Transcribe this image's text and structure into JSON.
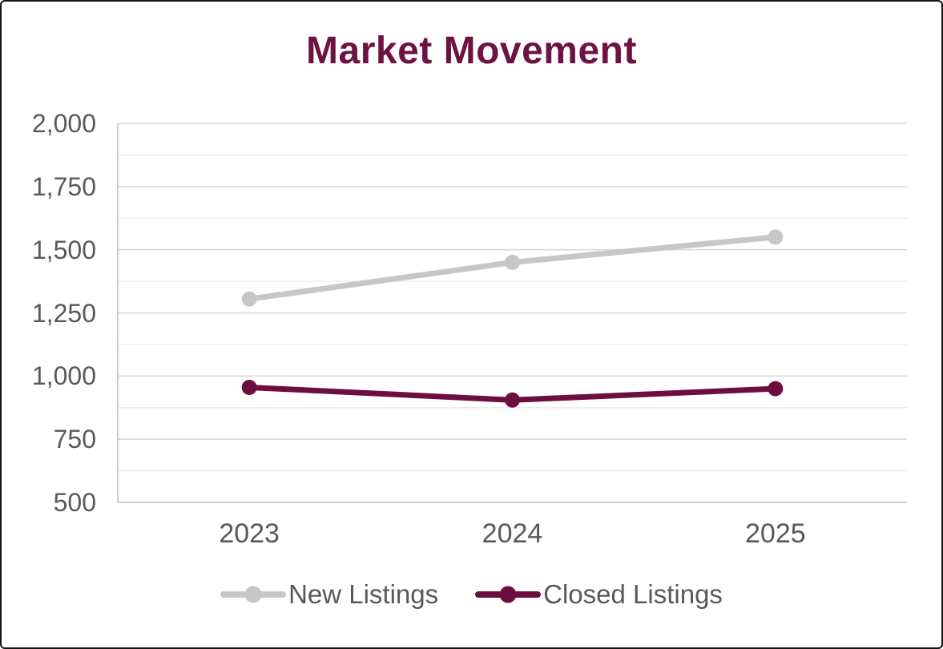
{
  "window": {
    "background": "#ffffff",
    "border_color": "#141414"
  },
  "chart_data": {
    "type": "line",
    "title": "Market Movement",
    "title_color": "#6d1342",
    "categories": [
      "2023",
      "2024",
      "2025"
    ],
    "series": [
      {
        "name": "New Listings",
        "values": [
          1305,
          1450,
          1550
        ],
        "color": "#c7c7c7"
      },
      {
        "name": "Closed Listings",
        "values": [
          955,
          905,
          950
        ],
        "color": "#6d0e41"
      }
    ],
    "ylim": [
      500,
      2000
    ],
    "ymajor_step": 250,
    "yminor_step": 125,
    "ytick_labels": [
      "500",
      "750",
      "1,000",
      "1,250",
      "1,500",
      "1,750",
      "2,000"
    ],
    "xlabel": "",
    "ylabel": "",
    "grid": true,
    "legend_position": "bottom",
    "axis_text_color": "#595959",
    "major_gridline_color": "#d9d9d9",
    "minor_gridline_color": "#ececec",
    "axis_line_color": "#c9c9c9"
  }
}
